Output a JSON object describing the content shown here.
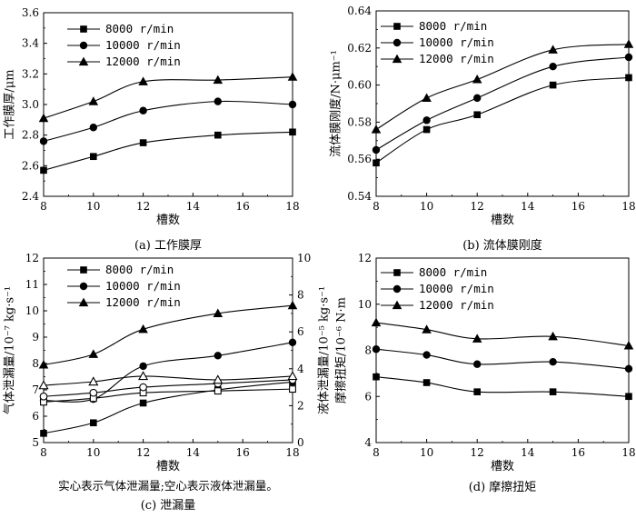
{
  "chart_data": [
    {
      "id": "a",
      "type": "line",
      "caption": "(a) 工作膜厚",
      "xlabel": "槽数",
      "ylabel": "工作膜厚/μm",
      "x": [
        8,
        10,
        12,
        15,
        18
      ],
      "xticks": [
        "8",
        "10",
        "12",
        "14",
        "16",
        "18"
      ],
      "xlim": [
        8,
        18
      ],
      "ylim": [
        2.4,
        3.6
      ],
      "yticks": [
        "2.4",
        "2.6",
        "2.8",
        "3.0",
        "3.2",
        "3.4",
        "3.6"
      ],
      "series": [
        {
          "name": "8000 r/min",
          "marker": "square",
          "values": [
            2.57,
            2.66,
            2.75,
            2.8,
            2.82
          ]
        },
        {
          "name": "10000 r/min",
          "marker": "circle",
          "values": [
            2.76,
            2.85,
            2.96,
            3.02,
            3.0
          ]
        },
        {
          "name": "12000 r/min",
          "marker": "triangle",
          "values": [
            2.91,
            3.02,
            3.15,
            3.16,
            3.18
          ]
        }
      ]
    },
    {
      "id": "b",
      "type": "line",
      "caption": "(b) 流体膜刚度",
      "xlabel": "槽数",
      "ylabel": "流体膜刚度/N·μm⁻¹",
      "x": [
        8,
        10,
        12,
        15,
        18
      ],
      "xticks": [
        "8",
        "10",
        "12",
        "14",
        "16",
        "18"
      ],
      "xlim": [
        8,
        18
      ],
      "ylim": [
        0.54,
        0.64
      ],
      "yticks": [
        "0.54",
        "0.56",
        "0.58",
        "0.60",
        "0.62",
        "0.64"
      ],
      "series": [
        {
          "name": "8000 r/min",
          "marker": "square",
          "values": [
            0.558,
            0.576,
            0.584,
            0.6,
            0.604
          ]
        },
        {
          "name": "10000 r/min",
          "marker": "circle",
          "values": [
            0.565,
            0.581,
            0.593,
            0.61,
            0.615
          ]
        },
        {
          "name": "12000 r/min",
          "marker": "triangle",
          "values": [
            0.576,
            0.593,
            0.603,
            0.619,
            0.622
          ]
        }
      ]
    },
    {
      "id": "c",
      "type": "line",
      "caption": "(c) 泄漏量",
      "note": "实心表示气体泄漏量;空心表示液体泄漏量。",
      "xlabel": "槽数",
      "ylabel": "气体泄漏量/10⁻⁷ kg·s⁻¹",
      "ylabel_right": "液体泄漏量/10⁻⁵ kg·s⁻¹",
      "x": [
        8,
        10,
        12,
        15,
        18
      ],
      "xticks": [
        "8",
        "10",
        "12",
        "14",
        "16",
        "18"
      ],
      "xlim": [
        8,
        18
      ],
      "ylim": [
        5,
        12
      ],
      "yticks": [
        "5",
        "6",
        "7",
        "8",
        "9",
        "10",
        "11",
        "12"
      ],
      "ylim_right": [
        0,
        10
      ],
      "yticks_right": [
        "0",
        "2",
        "4",
        "6",
        "8",
        "10"
      ],
      "series": [
        {
          "name": "8000 r/min",
          "marker": "square",
          "filled": true,
          "axis": "left",
          "values": [
            5.35,
            5.75,
            6.5,
            7.0,
            7.3
          ]
        },
        {
          "name": "10000 r/min",
          "marker": "circle",
          "filled": true,
          "axis": "left",
          "values": [
            6.6,
            6.65,
            7.9,
            8.3,
            8.8
          ]
        },
        {
          "name": "12000 r/min",
          "marker": "triangle",
          "filled": true,
          "axis": "left",
          "values": [
            7.95,
            8.35,
            9.3,
            9.9,
            10.2
          ]
        },
        {
          "name": "8000 r/min",
          "marker": "square",
          "filled": false,
          "axis": "right",
          "values": [
            2.2,
            2.4,
            2.7,
            2.8,
            2.9
          ]
        },
        {
          "name": "10000 r/min",
          "marker": "circle",
          "filled": false,
          "axis": "right",
          "values": [
            2.5,
            2.7,
            3.0,
            3.2,
            3.4
          ]
        },
        {
          "name": "12000 r/min",
          "marker": "triangle",
          "filled": false,
          "axis": "right",
          "values": [
            3.1,
            3.3,
            3.6,
            3.4,
            3.6
          ]
        }
      ]
    },
    {
      "id": "d",
      "type": "line",
      "caption": "(d) 摩擦扭矩",
      "xlabel": "槽数",
      "ylabel": "摩擦扭矩/10⁻⁶ N·m",
      "x": [
        8,
        10,
        12,
        15,
        18
      ],
      "xticks": [
        "8",
        "10",
        "12",
        "14",
        "16",
        "18"
      ],
      "xlim": [
        8,
        18
      ],
      "ylim": [
        4,
        12
      ],
      "yticks": [
        "4",
        "6",
        "8",
        "10",
        "12"
      ],
      "series": [
        {
          "name": "8000 r/min",
          "marker": "square",
          "values": [
            6.85,
            6.6,
            6.2,
            6.2,
            6.0
          ]
        },
        {
          "name": "10000 r/min",
          "marker": "circle",
          "values": [
            8.05,
            7.8,
            7.4,
            7.5,
            7.2
          ]
        },
        {
          "name": "12000 r/min",
          "marker": "triangle",
          "values": [
            9.2,
            8.9,
            8.5,
            8.6,
            8.2
          ]
        }
      ]
    }
  ]
}
